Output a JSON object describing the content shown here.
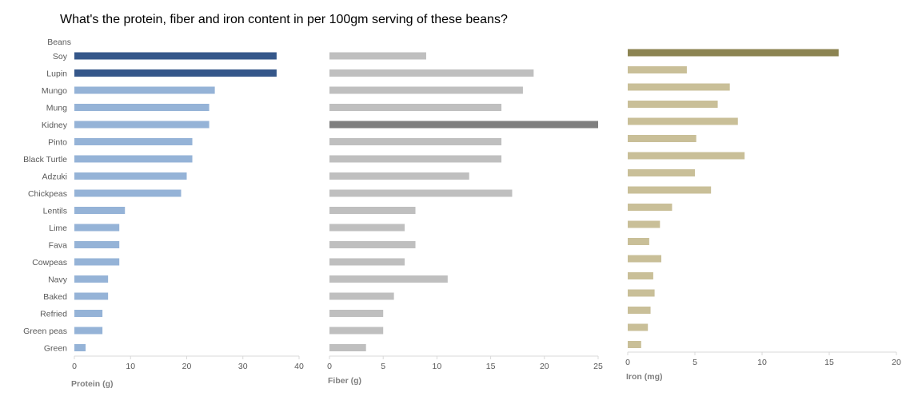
{
  "title": "What's the protein, fiber and iron content in per 100gm serving of these beans?",
  "category_header": "Beans",
  "colors": {
    "protein_base": "#95b3d7",
    "protein_highlight": "#35578a",
    "fiber_base": "#bfbfbf",
    "fiber_highlight": "#7f7f7f",
    "iron_base": "#c9bf98",
    "iron_highlight": "#8c8452",
    "axis": "#d9d9d9"
  },
  "chart_data": [
    {
      "type": "bar",
      "orientation": "horizontal",
      "categories": [
        "Soy",
        "Lupin",
        "Mungo",
        "Mung",
        "Kidney",
        "Pinto",
        "Black Turtle",
        "Adzuki",
        "Chickpeas",
        "Lentils",
        "Lime",
        "Fava",
        "Cowpeas",
        "Navy",
        "Baked",
        "Refried",
        "Green peas",
        "Green"
      ],
      "values": [
        36,
        36,
        25,
        24,
        24,
        21,
        21,
        20,
        19,
        9,
        8,
        8,
        8,
        6,
        6,
        5,
        5,
        2
      ],
      "highlight": [
        true,
        true,
        false,
        false,
        false,
        false,
        false,
        false,
        false,
        false,
        false,
        false,
        false,
        false,
        false,
        false,
        false,
        false
      ],
      "xlabel": "Protein (g)",
      "xlim": [
        0,
        40
      ],
      "xticks": [
        0,
        10,
        20,
        30,
        40
      ]
    },
    {
      "type": "bar",
      "orientation": "horizontal",
      "categories": [
        "Soy",
        "Lupin",
        "Mungo",
        "Mung",
        "Kidney",
        "Pinto",
        "Black Turtle",
        "Adzuki",
        "Chickpeas",
        "Lentils",
        "Lime",
        "Fava",
        "Cowpeas",
        "Navy",
        "Baked",
        "Refried",
        "Green peas",
        "Green"
      ],
      "values": [
        9,
        19,
        18,
        16,
        25,
        16,
        16,
        13,
        17,
        8,
        7,
        8,
        7,
        11,
        6,
        5,
        5,
        3.4
      ],
      "highlight": [
        false,
        false,
        false,
        false,
        true,
        false,
        false,
        false,
        false,
        false,
        false,
        false,
        false,
        false,
        false,
        false,
        false,
        false
      ],
      "xlabel": "Fiber (g)",
      "xlim": [
        0,
        25
      ],
      "xticks": [
        0,
        5,
        10,
        15,
        20,
        25
      ]
    },
    {
      "type": "bar",
      "orientation": "horizontal",
      "categories": [
        "Soy",
        "Lupin",
        "Mungo",
        "Mung",
        "Kidney",
        "Pinto",
        "Black Turtle",
        "Adzuki",
        "Chickpeas",
        "Lentils",
        "Lime",
        "Fava",
        "Cowpeas",
        "Navy",
        "Baked",
        "Refried",
        "Green peas",
        "Green"
      ],
      "values": [
        15.7,
        4.4,
        7.6,
        6.7,
        8.2,
        5.1,
        8.7,
        5.0,
        6.2,
        3.3,
        2.4,
        1.6,
        2.5,
        1.9,
        2.0,
        1.7,
        1.5,
        1.0
      ],
      "highlight": [
        true,
        false,
        false,
        false,
        false,
        false,
        false,
        false,
        false,
        false,
        false,
        false,
        false,
        false,
        false,
        false,
        false,
        false
      ],
      "xlabel": "Iron (mg)",
      "xlim": [
        0,
        20
      ],
      "xticks": [
        0,
        5,
        10,
        15,
        20
      ]
    }
  ]
}
